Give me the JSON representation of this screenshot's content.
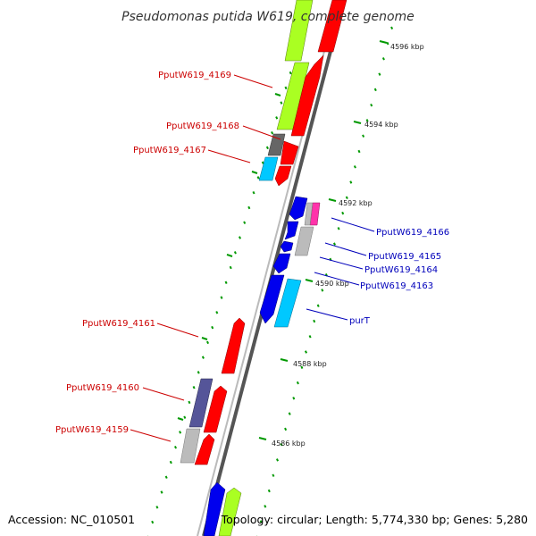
{
  "title": "Pseudomonas putida W619, complete genome",
  "accession": "Accession: NC_010501",
  "topology": "Topology: circular; Length: 5,774,330 bp; Genes: 5,280",
  "colors": {
    "backbone_dark": "#555555",
    "backbone_light": "#bbbbbb",
    "label_left": "#cc0000",
    "label_right": "#0000bb",
    "tick": "#009900"
  },
  "ticks": [
    "4596 kbp",
    "4594 kbp",
    "4592 kbp",
    "4590 kbp",
    "4588 kbp",
    "4586 kbp"
  ],
  "genes_left": [
    {
      "label": "PputW619_4169",
      "color": "#ff0000"
    },
    {
      "label": "PputW619_4168",
      "color": "#666666"
    },
    {
      "label": "PputW619_4167",
      "color": "#00c8ff"
    },
    {
      "label": "PputW619_4161",
      "color": "#ff0000"
    },
    {
      "label": "PputW619_4160",
      "color": "#555599"
    },
    {
      "label": "PputW619_4159",
      "color": "#bbbbbb"
    }
  ],
  "genes_right": [
    {
      "label": "PputW619_4166",
      "color": "#ff33aa"
    },
    {
      "label": "PputW619_4165",
      "color": "#bbbbbb"
    },
    {
      "label": "PputW619_4164",
      "color": "#0000ee"
    },
    {
      "label": "PputW619_4163",
      "color": "#0000ee"
    },
    {
      "label": "purT",
      "color": "#00c8ff"
    }
  ]
}
